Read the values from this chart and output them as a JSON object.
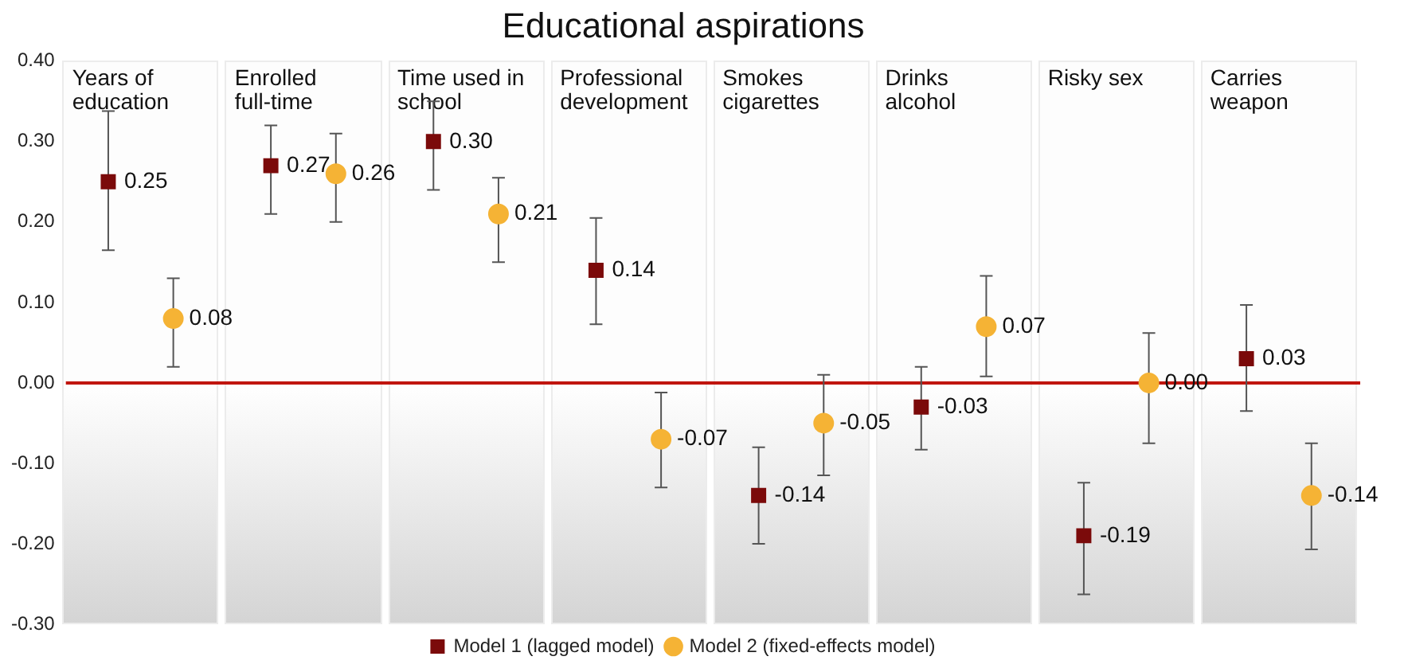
{
  "chart_data": {
    "type": "scatter",
    "title": "Educational aspirations",
    "categories": [
      "Years of education",
      "Enrolled full-time",
      "Time used in school",
      "Professional development",
      "Smokes cigarettes",
      "Drinks alcohol",
      "Risky sex",
      "Carries weapon"
    ],
    "series": [
      {
        "name": "Model 1 (lagged model)",
        "color": "#7b0a0a",
        "marker": "square",
        "values": [
          0.25,
          0.27,
          0.3,
          0.14,
          -0.14,
          -0.03,
          -0.19,
          0.03
        ],
        "value_labels": [
          "0.25",
          "0.27",
          "0.30",
          "0.14",
          "-0.14",
          "-0.03",
          "-0.19",
          "0.03"
        ],
        "errors": [
          [
            0.165,
            0.338
          ],
          [
            0.21,
            0.32
          ],
          [
            0.24,
            0.35
          ],
          [
            0.073,
            0.205
          ],
          [
            -0.2,
            -0.08
          ],
          [
            -0.083,
            0.02
          ],
          [
            -0.263,
            -0.124
          ],
          [
            -0.035,
            0.097
          ]
        ]
      },
      {
        "name": "Model 2 (fixed-effects model)",
        "color": "#f5b335",
        "marker": "circle",
        "values": [
          0.08,
          0.26,
          0.21,
          -0.07,
          -0.05,
          0.07,
          0.0,
          -0.14
        ],
        "value_labels": [
          "0.08",
          "0.26",
          "0.21",
          "-0.07",
          "-0.05",
          "0.07",
          "0.00",
          "-0.14"
        ],
        "errors": [
          [
            0.02,
            0.13
          ],
          [
            0.2,
            0.31
          ],
          [
            0.15,
            0.255
          ],
          [
            -0.13,
            -0.012
          ],
          [
            -0.115,
            0.01
          ],
          [
            0.008,
            0.133
          ],
          [
            -0.075,
            0.062
          ],
          [
            -0.207,
            -0.075
          ]
        ]
      }
    ],
    "ylim": [
      -0.3,
      0.4
    ],
    "yticks": [
      {
        "value": -0.3,
        "label": "-0.30"
      },
      {
        "value": -0.2,
        "label": "-0.20"
      },
      {
        "value": -0.1,
        "label": "-0.10"
      },
      {
        "value": 0,
        "label": "0.00"
      },
      {
        "value": 0.1,
        "label": "0.10"
      },
      {
        "value": 0.2,
        "label": "0.20"
      },
      {
        "value": 0.3,
        "label": "0.30"
      },
      {
        "value": 0.4,
        "label": "0.40"
      }
    ],
    "ref_lines": [
      {
        "axis": "y",
        "value": 0,
        "color": "#c0150f"
      }
    ],
    "grid": false,
    "legend": "bottom"
  }
}
